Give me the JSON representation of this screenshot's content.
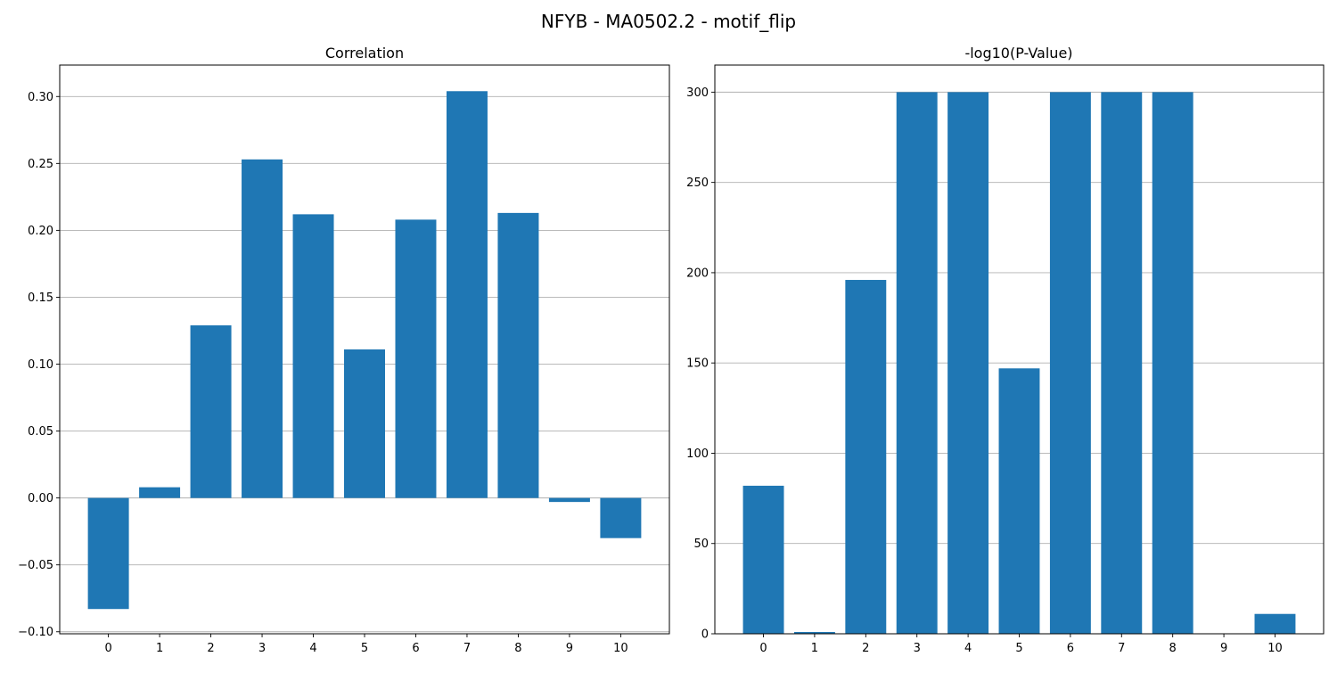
{
  "figure": {
    "title": "NFYB - MA0502.2 - motif_flip",
    "bar_color": "#1f77b4"
  },
  "chart_data": [
    {
      "type": "bar",
      "title": "Correlation",
      "categories": [
        "0",
        "1",
        "2",
        "3",
        "4",
        "5",
        "6",
        "7",
        "8",
        "9",
        "10"
      ],
      "values": [
        -0.083,
        0.008,
        0.129,
        0.253,
        0.212,
        0.111,
        0.208,
        0.304,
        0.213,
        -0.003,
        -0.03
      ],
      "yticks": [
        -0.1,
        -0.05,
        0.0,
        0.05,
        0.1,
        0.15,
        0.2,
        0.25,
        0.3
      ],
      "ytick_labels": [
        "−0.10",
        "−0.05",
        "0.00",
        "0.05",
        "0.10",
        "0.15",
        "0.20",
        "0.25",
        "0.30"
      ],
      "ylim": [
        -0.1015,
        0.3235
      ],
      "xlabel": "",
      "ylabel": "",
      "grid": "y"
    },
    {
      "type": "bar",
      "title": "-log10(P-Value)",
      "categories": [
        "0",
        "1",
        "2",
        "3",
        "4",
        "5",
        "6",
        "7",
        "8",
        "9",
        "10"
      ],
      "values": [
        82,
        1,
        196,
        300,
        300,
        147,
        300,
        300,
        300,
        0,
        11
      ],
      "yticks": [
        0,
        50,
        100,
        150,
        200,
        250,
        300
      ],
      "ytick_labels": [
        "0",
        "50",
        "100",
        "150",
        "200",
        "250",
        "300"
      ],
      "ylim": [
        0,
        315
      ],
      "xlabel": "",
      "ylabel": "",
      "grid": "y"
    }
  ]
}
